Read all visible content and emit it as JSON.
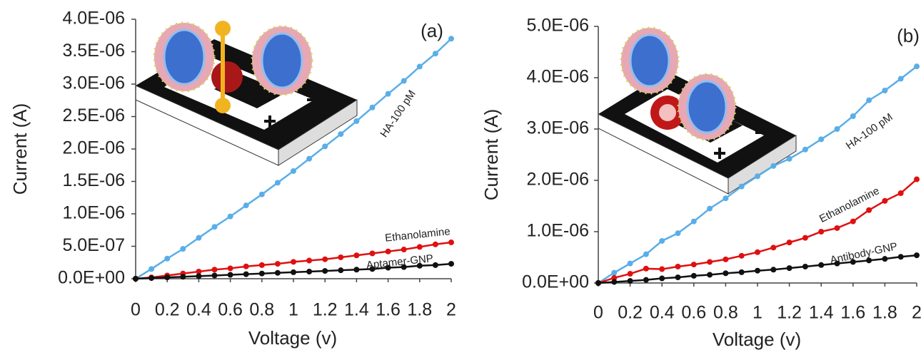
{
  "chart_data": [
    {
      "type": "line",
      "annotation": "(a)",
      "xlabel": "Voltage (v)",
      "ylabel": "Current (A)",
      "x": [
        0,
        0.1,
        0.2,
        0.3,
        0.4,
        0.5,
        0.6,
        0.7,
        0.8,
        0.9,
        1,
        1.1,
        1.2,
        1.3,
        1.4,
        1.5,
        1.6,
        1.7,
        1.8,
        1.9,
        2
      ],
      "xlim": [
        0,
        2
      ],
      "xticks": [
        0,
        0.2,
        0.4,
        0.6,
        0.8,
        1,
        1.2,
        1.4,
        1.6,
        1.8,
        2
      ],
      "ylim": [
        0,
        4e-06
      ],
      "yticks": [
        {
          "value": 0,
          "label": "0.0E+00"
        },
        {
          "value": 5e-07,
          "label": "5.0E-07"
        },
        {
          "value": 1e-06,
          "label": "1.0E-06"
        },
        {
          "value": 1.5e-06,
          "label": "1.5E-06"
        },
        {
          "value": 2e-06,
          "label": "2.0E-06"
        },
        {
          "value": 2.5e-06,
          "label": "2.5E-06"
        },
        {
          "value": 3e-06,
          "label": "3.0E-06"
        },
        {
          "value": 3.5e-06,
          "label": "3.5E-06"
        },
        {
          "value": 4e-06,
          "label": "4.0E-06"
        }
      ],
      "series": [
        {
          "name": "HA-100 pM",
          "color": "#5aaee8",
          "values": [
            0,
            1.5e-07,
            3.1e-07,
            4.6e-07,
            6.3e-07,
            8e-07,
            9.6e-07,
            1.13e-06,
            1.3e-06,
            1.48e-06,
            1.66e-06,
            1.85e-06,
            2.04e-06,
            2.23e-06,
            2.43e-06,
            2.64e-06,
            2.85e-06,
            3.05e-06,
            3.27e-06,
            3.47e-06,
            3.7e-06
          ]
        },
        {
          "name": "Ethanolamine",
          "color": "#e01010",
          "values": [
            0,
            2e-08,
            5e-08,
            8e-08,
            1.1e-07,
            1.4e-07,
            1.6e-07,
            1.9e-07,
            2.1e-07,
            2.3e-07,
            2.6e-07,
            2.8e-07,
            3e-07,
            3.3e-07,
            3.6e-07,
            3.9e-07,
            4.2e-07,
            4.5e-07,
            4.9e-07,
            5.3e-07,
            5.6e-07
          ]
        },
        {
          "name": "Aptamer-GNP",
          "color": "#111111",
          "values": [
            0,
            1e-08,
            2e-08,
            3e-08,
            4e-08,
            5e-08,
            6e-08,
            7e-08,
            8e-08,
            9e-08,
            1e-07,
            1.1e-07,
            1.2e-07,
            1.3e-07,
            1.4e-07,
            1.5e-07,
            1.7e-07,
            1.8e-07,
            2e-07,
            2.1e-07,
            2.3e-07
          ]
        }
      ]
    },
    {
      "type": "line",
      "annotation": "(b)",
      "xlabel": "Voltage (v)",
      "ylabel": "Current (A)",
      "x": [
        0,
        0.1,
        0.2,
        0.3,
        0.4,
        0.5,
        0.6,
        0.7,
        0.8,
        0.9,
        1,
        1.1,
        1.2,
        1.3,
        1.4,
        1.5,
        1.6,
        1.7,
        1.8,
        1.9,
        2
      ],
      "xlim": [
        0,
        2
      ],
      "xticks": [
        0,
        0.2,
        0.4,
        0.6,
        0.8,
        1,
        1.2,
        1.4,
        1.6,
        1.8,
        2
      ],
      "ylim": [
        0,
        5e-06
      ],
      "yticks": [
        {
          "value": 0,
          "label": "0.0E+00"
        },
        {
          "value": 1e-06,
          "label": "1.0E-06"
        },
        {
          "value": 2e-06,
          "label": "2.0E-06"
        },
        {
          "value": 3e-06,
          "label": "3.0E-06"
        },
        {
          "value": 4e-06,
          "label": "4.0E-06"
        },
        {
          "value": 5e-06,
          "label": "5.0E-06"
        }
      ],
      "series": [
        {
          "name": "HA-100 pM",
          "color": "#5aaee8",
          "values": [
            0,
            2e-07,
            3.8e-07,
            5.6e-07,
            8.2e-07,
            9.7e-07,
            1.2e-06,
            1.45e-06,
            1.65e-06,
            1.88e-06,
            2.08e-06,
            2.28e-06,
            2.42e-06,
            2.6e-06,
            2.8e-06,
            3e-06,
            3.25e-06,
            3.56e-06,
            3.75e-06,
            3.98e-06,
            4.22e-06
          ]
        },
        {
          "name": "Ethanolamine",
          "color": "#e01010",
          "values": [
            0,
            1e-07,
            1.8e-07,
            2.8e-07,
            2.7e-07,
            3.2e-07,
            3.6e-07,
            4.1e-07,
            4.6e-07,
            5.3e-07,
            6e-07,
            6.9e-07,
            7.9e-07,
            8.8e-07,
            1e-06,
            1.07e-06,
            1.2e-06,
            1.42e-06,
            1.6e-06,
            1.75e-06,
            2.02e-06
          ]
        },
        {
          "name": "Antibody-GNP",
          "color": "#111111",
          "values": [
            0,
            2e-08,
            4e-08,
            6e-08,
            9e-08,
            1.1e-07,
            1.4e-07,
            1.6e-07,
            1.9e-07,
            2.1e-07,
            2.4e-07,
            2.6e-07,
            2.9e-07,
            3.2e-07,
            3.5e-07,
            3.8e-07,
            4.1e-07,
            4.4e-07,
            4.7e-07,
            5.1e-07,
            5.4e-07
          ]
        }
      ]
    }
  ]
}
